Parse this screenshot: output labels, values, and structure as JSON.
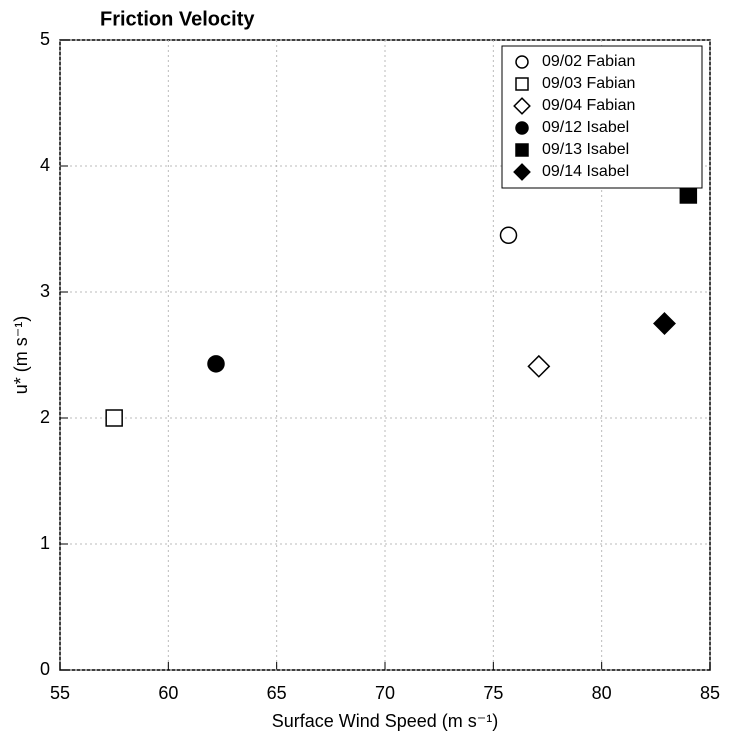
{
  "chart_data": {
    "type": "scatter",
    "title": "Friction Velocity",
    "x_label": "Surface Wind Speed (m s⁻¹)",
    "y_label": "u* (m s⁻¹)",
    "xlim": [
      55,
      85
    ],
    "xticks": [
      55,
      60,
      65,
      70,
      75,
      80,
      85
    ],
    "ylim": [
      0,
      5
    ],
    "yticks": [
      0,
      1,
      2,
      3,
      4,
      5
    ],
    "grid": true,
    "legend": "upper right",
    "series": [
      {
        "name": "09/02 Fabian",
        "color": "#000000",
        "marker": "circle",
        "filled": false,
        "x": [
          75.7
        ],
        "values": [
          3.45
        ]
      },
      {
        "name": "09/03 Fabian",
        "color": "#000000",
        "marker": "square",
        "filled": false,
        "x": [
          57.5
        ],
        "values": [
          2.0
        ]
      },
      {
        "name": "09/04 Fabian",
        "color": "#000000",
        "marker": "diamond",
        "filled": false,
        "x": [
          77.1
        ],
        "values": [
          2.41
        ]
      },
      {
        "name": "09/12 Isabel",
        "color": "#000000",
        "marker": "circle",
        "filled": true,
        "x": [
          62.2
        ],
        "values": [
          2.43
        ]
      },
      {
        "name": "09/13 Isabel",
        "color": "#000000",
        "marker": "square",
        "filled": true,
        "x": [
          84.0
        ],
        "values": [
          3.77
        ]
      },
      {
        "name": "09/14 Isabel",
        "color": "#000000",
        "marker": "diamond",
        "filled": true,
        "x": [
          82.9
        ],
        "values": [
          2.75
        ]
      }
    ]
  }
}
